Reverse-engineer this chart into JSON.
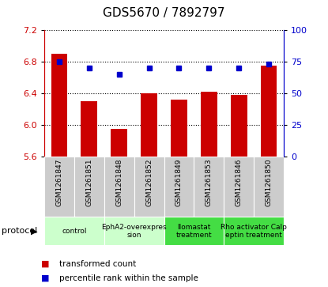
{
  "title": "GDS5670 / 7892797",
  "samples": [
    "GSM1261847",
    "GSM1261851",
    "GSM1261848",
    "GSM1261852",
    "GSM1261849",
    "GSM1261853",
    "GSM1261846",
    "GSM1261850"
  ],
  "bar_values": [
    6.9,
    6.3,
    5.95,
    6.4,
    6.32,
    6.42,
    6.38,
    6.75
  ],
  "dot_values": [
    75,
    70,
    65,
    70,
    70,
    70,
    70,
    73
  ],
  "ylim_left": [
    5.6,
    7.2
  ],
  "ylim_right": [
    0,
    100
  ],
  "yticks_left": [
    5.6,
    6.0,
    6.4,
    6.8,
    7.2
  ],
  "yticks_right": [
    0,
    25,
    50,
    75,
    100
  ],
  "bar_color": "#cc0000",
  "dot_color": "#0000cc",
  "protocols": [
    {
      "label": "control",
      "start": 0,
      "end": 2,
      "color": "#ccffcc"
    },
    {
      "label": "EphA2-overexpres\nsion",
      "start": 2,
      "end": 4,
      "color": "#ccffcc"
    },
    {
      "label": "Ilomastat\ntreatment",
      "start": 4,
      "end": 6,
      "color": "#44dd44"
    },
    {
      "label": "Rho activator Calp\neptin treatment",
      "start": 6,
      "end": 8,
      "color": "#44dd44"
    }
  ],
  "protocol_label": "protocol",
  "legend_bar": "transformed count",
  "legend_dot": "percentile rank within the sample",
  "sample_bg": "#cccccc",
  "title_fontsize": 11,
  "tick_fontsize": 8,
  "legend_fontsize": 7.5
}
